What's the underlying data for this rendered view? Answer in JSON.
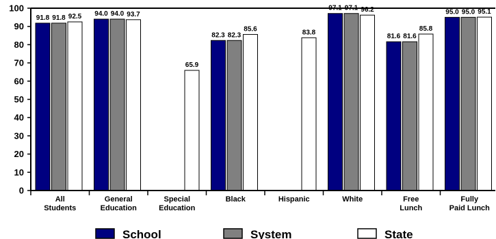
{
  "chart_data": {
    "type": "bar",
    "title": "",
    "xlabel": "",
    "ylabel": "",
    "ylim": [
      0,
      100
    ],
    "yticks": [
      0,
      10,
      20,
      30,
      40,
      50,
      60,
      70,
      80,
      90,
      100
    ],
    "grid": false,
    "legend_position": "bottom",
    "categories": [
      [
        "All",
        "Students"
      ],
      [
        "General",
        "Education"
      ],
      [
        "Special",
        "Education"
      ],
      [
        "Black"
      ],
      [
        "Hispanic"
      ],
      [
        "White"
      ],
      [
        "Free",
        "Lunch"
      ],
      [
        "Fully",
        "Paid Lunch"
      ]
    ],
    "series": [
      {
        "name": "School",
        "color": "#000080",
        "values": [
          91.8,
          94.0,
          null,
          82.3,
          null,
          97.1,
          81.6,
          95.0
        ]
      },
      {
        "name": "System",
        "color": "#808080",
        "values": [
          91.8,
          94.0,
          null,
          82.3,
          null,
          97.1,
          81.6,
          95.0
        ]
      },
      {
        "name": "State",
        "color": "#ffffff",
        "values": [
          92.5,
          93.7,
          65.9,
          85.6,
          83.8,
          96.2,
          85.8,
          95.1
        ]
      }
    ]
  }
}
